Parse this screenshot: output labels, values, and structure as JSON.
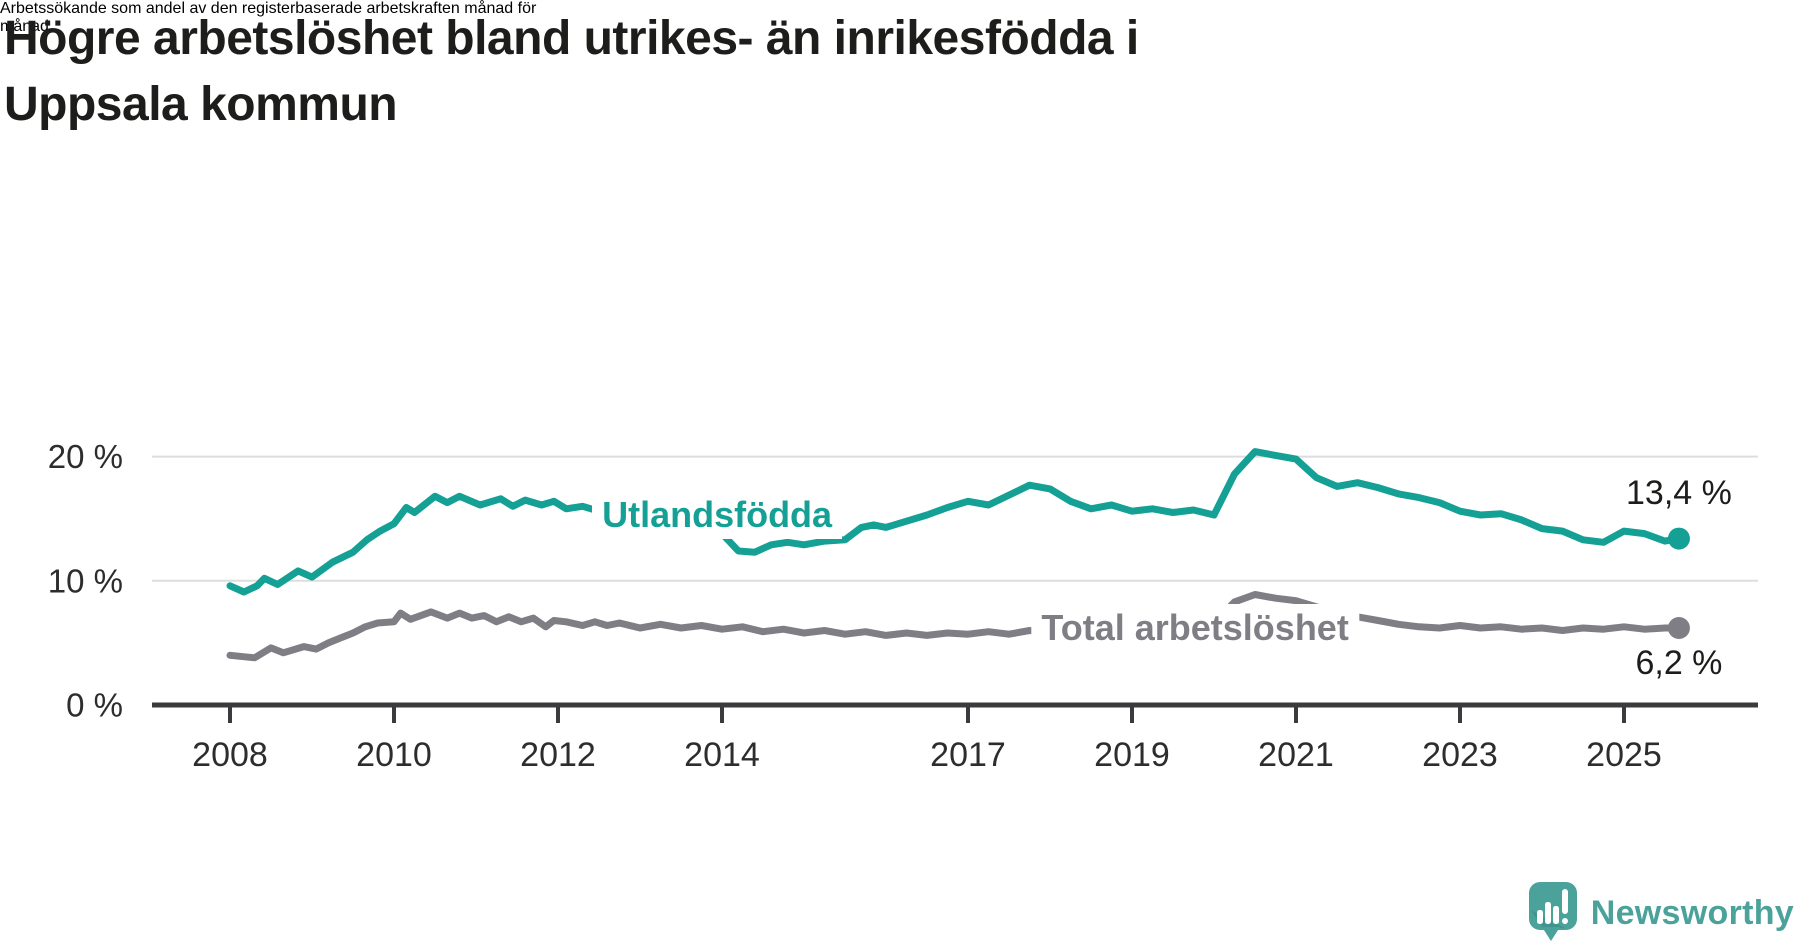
{
  "header": {
    "title": "Högre arbetslöshet bland utrikes- än inrikesfödda i Uppsala kommun",
    "title_lines": [
      "Högre arbetslöshet bland utrikes- än inrikesfödda i",
      "Uppsala kommun"
    ],
    "subtitle": "Arbetssökande som andel av den registerbaserade arbetskraften månad för månad.",
    "subtitle_lines": [
      "Arbetssökande som andel av den registerbaserade arbetskraften månad för",
      "månad."
    ]
  },
  "footer": {
    "brand": "Newsworthy"
  },
  "colors": {
    "series_foreign_born": "#14a095",
    "series_total": "#7e7e84",
    "gridline": "#dddddd",
    "axis": "#3b3b3e",
    "tick_text": "#2d2d2d",
    "title_text": "#1d1d1b",
    "logo_teal": "#4ba29b",
    "logo_fold": "#3f948e",
    "background": "#ffffff"
  },
  "chart_data": {
    "type": "line",
    "title": "Högre arbetslöshet bland utrikes- än inrikesfödda i Uppsala kommun",
    "subtitle": "Arbetssökande som andel av den registerbaserade arbetskraften månad för månad.",
    "unit": "%",
    "grid": true,
    "legend_position": "inline-labels",
    "x_axis": {
      "range": [
        2007.1,
        2026.6
      ],
      "ticks": [
        2008,
        2010,
        2012,
        2014,
        2017,
        2019,
        2021,
        2023,
        2025
      ]
    },
    "y_axis": {
      "range": [
        0,
        25.4
      ],
      "ticks": [
        {
          "value": 0,
          "label": "0 %"
        },
        {
          "value": 10,
          "label": "10 %"
        },
        {
          "value": 20,
          "label": "20 %"
        }
      ]
    },
    "series": [
      {
        "name": "Utlandsfödda",
        "color": "#14a095",
        "end_value": 13.4,
        "end_label": "13,4 %",
        "label_anchor": {
          "x": 2013.94,
          "y": 15.3
        },
        "points": [
          [
            2008.0,
            9.6
          ],
          [
            2008.17,
            9.1
          ],
          [
            2008.33,
            9.6
          ],
          [
            2008.42,
            10.2
          ],
          [
            2008.58,
            9.7
          ],
          [
            2008.83,
            10.8
          ],
          [
            2009.0,
            10.3
          ],
          [
            2009.25,
            11.5
          ],
          [
            2009.5,
            12.3
          ],
          [
            2009.67,
            13.3
          ],
          [
            2009.83,
            14.0
          ],
          [
            2010.0,
            14.6
          ],
          [
            2010.15,
            15.9
          ],
          [
            2010.25,
            15.5
          ],
          [
            2010.5,
            16.8
          ],
          [
            2010.65,
            16.3
          ],
          [
            2010.8,
            16.8
          ],
          [
            2011.05,
            16.1
          ],
          [
            2011.3,
            16.6
          ],
          [
            2011.45,
            16.0
          ],
          [
            2011.6,
            16.5
          ],
          [
            2011.8,
            16.1
          ],
          [
            2011.95,
            16.4
          ],
          [
            2012.1,
            15.8
          ],
          [
            2012.3,
            16.0
          ],
          [
            2012.5,
            15.6
          ],
          [
            2012.75,
            15.8
          ],
          [
            2013.0,
            15.3
          ],
          [
            2013.25,
            15.5
          ],
          [
            2013.5,
            15.0
          ],
          [
            2013.75,
            14.7
          ],
          [
            2014.0,
            13.8
          ],
          [
            2014.2,
            12.4
          ],
          [
            2014.4,
            12.3
          ],
          [
            2014.6,
            12.9
          ],
          [
            2014.8,
            13.1
          ],
          [
            2015.0,
            12.9
          ],
          [
            2015.25,
            13.2
          ],
          [
            2015.5,
            13.3
          ],
          [
            2015.7,
            14.3
          ],
          [
            2015.85,
            14.5
          ],
          [
            2016.0,
            14.3
          ],
          [
            2016.25,
            14.8
          ],
          [
            2016.5,
            15.3
          ],
          [
            2016.75,
            15.9
          ],
          [
            2017.0,
            16.4
          ],
          [
            2017.25,
            16.1
          ],
          [
            2017.5,
            16.9
          ],
          [
            2017.75,
            17.7
          ],
          [
            2018.0,
            17.4
          ],
          [
            2018.25,
            16.4
          ],
          [
            2018.5,
            15.8
          ],
          [
            2018.75,
            16.1
          ],
          [
            2019.0,
            15.6
          ],
          [
            2019.25,
            15.8
          ],
          [
            2019.5,
            15.5
          ],
          [
            2019.75,
            15.7
          ],
          [
            2020.0,
            15.3
          ],
          [
            2020.25,
            18.6
          ],
          [
            2020.5,
            20.4
          ],
          [
            2020.75,
            20.1
          ],
          [
            2021.0,
            19.8
          ],
          [
            2021.25,
            18.3
          ],
          [
            2021.5,
            17.6
          ],
          [
            2021.75,
            17.9
          ],
          [
            2022.0,
            17.5
          ],
          [
            2022.25,
            17.0
          ],
          [
            2022.5,
            16.7
          ],
          [
            2022.75,
            16.3
          ],
          [
            2023.0,
            15.6
          ],
          [
            2023.25,
            15.3
          ],
          [
            2023.5,
            15.4
          ],
          [
            2023.75,
            14.9
          ],
          [
            2024.0,
            14.2
          ],
          [
            2024.25,
            14.0
          ],
          [
            2024.5,
            13.3
          ],
          [
            2024.75,
            13.1
          ],
          [
            2025.0,
            14.0
          ],
          [
            2025.25,
            13.8
          ],
          [
            2025.5,
            13.2
          ],
          [
            2025.67,
            13.4
          ]
        ]
      },
      {
        "name": "Total arbetslöshet",
        "color": "#7e7e84",
        "end_value": 6.2,
        "end_label": "6,2 %",
        "label_anchor": {
          "x": 2019.77,
          "y": 6.2
        },
        "points": [
          [
            2008.0,
            4.0
          ],
          [
            2008.3,
            3.8
          ],
          [
            2008.5,
            4.6
          ],
          [
            2008.65,
            4.2
          ],
          [
            2008.9,
            4.7
          ],
          [
            2009.05,
            4.5
          ],
          [
            2009.2,
            5.0
          ],
          [
            2009.35,
            5.4
          ],
          [
            2009.5,
            5.8
          ],
          [
            2009.65,
            6.3
          ],
          [
            2009.8,
            6.6
          ],
          [
            2010.0,
            6.7
          ],
          [
            2010.08,
            7.4
          ],
          [
            2010.2,
            6.9
          ],
          [
            2010.45,
            7.5
          ],
          [
            2010.65,
            7.0
          ],
          [
            2010.8,
            7.4
          ],
          [
            2010.95,
            7.0
          ],
          [
            2011.1,
            7.2
          ],
          [
            2011.25,
            6.7
          ],
          [
            2011.4,
            7.1
          ],
          [
            2011.55,
            6.7
          ],
          [
            2011.7,
            7.0
          ],
          [
            2011.85,
            6.3
          ],
          [
            2011.95,
            6.8
          ],
          [
            2012.1,
            6.7
          ],
          [
            2012.3,
            6.4
          ],
          [
            2012.45,
            6.7
          ],
          [
            2012.6,
            6.4
          ],
          [
            2012.75,
            6.6
          ],
          [
            2013.0,
            6.2
          ],
          [
            2013.25,
            6.5
          ],
          [
            2013.5,
            6.2
          ],
          [
            2013.75,
            6.4
          ],
          [
            2014.0,
            6.1
          ],
          [
            2014.25,
            6.3
          ],
          [
            2014.5,
            5.9
          ],
          [
            2014.75,
            6.1
          ],
          [
            2015.0,
            5.8
          ],
          [
            2015.25,
            6.0
          ],
          [
            2015.5,
            5.7
          ],
          [
            2015.75,
            5.9
          ],
          [
            2016.0,
            5.6
          ],
          [
            2016.25,
            5.8
          ],
          [
            2016.5,
            5.6
          ],
          [
            2016.75,
            5.8
          ],
          [
            2017.0,
            5.7
          ],
          [
            2017.25,
            5.9
          ],
          [
            2017.5,
            5.7
          ],
          [
            2017.75,
            6.0
          ],
          [
            2018.0,
            5.8
          ],
          [
            2018.25,
            6.0
          ],
          [
            2018.5,
            5.8
          ],
          [
            2018.75,
            6.1
          ],
          [
            2019.0,
            5.9
          ],
          [
            2019.25,
            6.1
          ],
          [
            2019.5,
            6.0
          ],
          [
            2019.75,
            6.3
          ],
          [
            2020.0,
            6.6
          ],
          [
            2020.25,
            8.3
          ],
          [
            2020.5,
            8.9
          ],
          [
            2020.75,
            8.6
          ],
          [
            2021.0,
            8.4
          ],
          [
            2021.25,
            7.9
          ],
          [
            2021.5,
            7.5
          ],
          [
            2021.75,
            7.1
          ],
          [
            2022.0,
            6.8
          ],
          [
            2022.25,
            6.5
          ],
          [
            2022.5,
            6.3
          ],
          [
            2022.75,
            6.2
          ],
          [
            2023.0,
            6.4
          ],
          [
            2023.25,
            6.2
          ],
          [
            2023.5,
            6.3
          ],
          [
            2023.75,
            6.1
          ],
          [
            2024.0,
            6.2
          ],
          [
            2024.25,
            6.0
          ],
          [
            2024.5,
            6.2
          ],
          [
            2024.75,
            6.1
          ],
          [
            2025.0,
            6.3
          ],
          [
            2025.25,
            6.1
          ],
          [
            2025.5,
            6.2
          ],
          [
            2025.67,
            6.2
          ]
        ]
      }
    ]
  }
}
